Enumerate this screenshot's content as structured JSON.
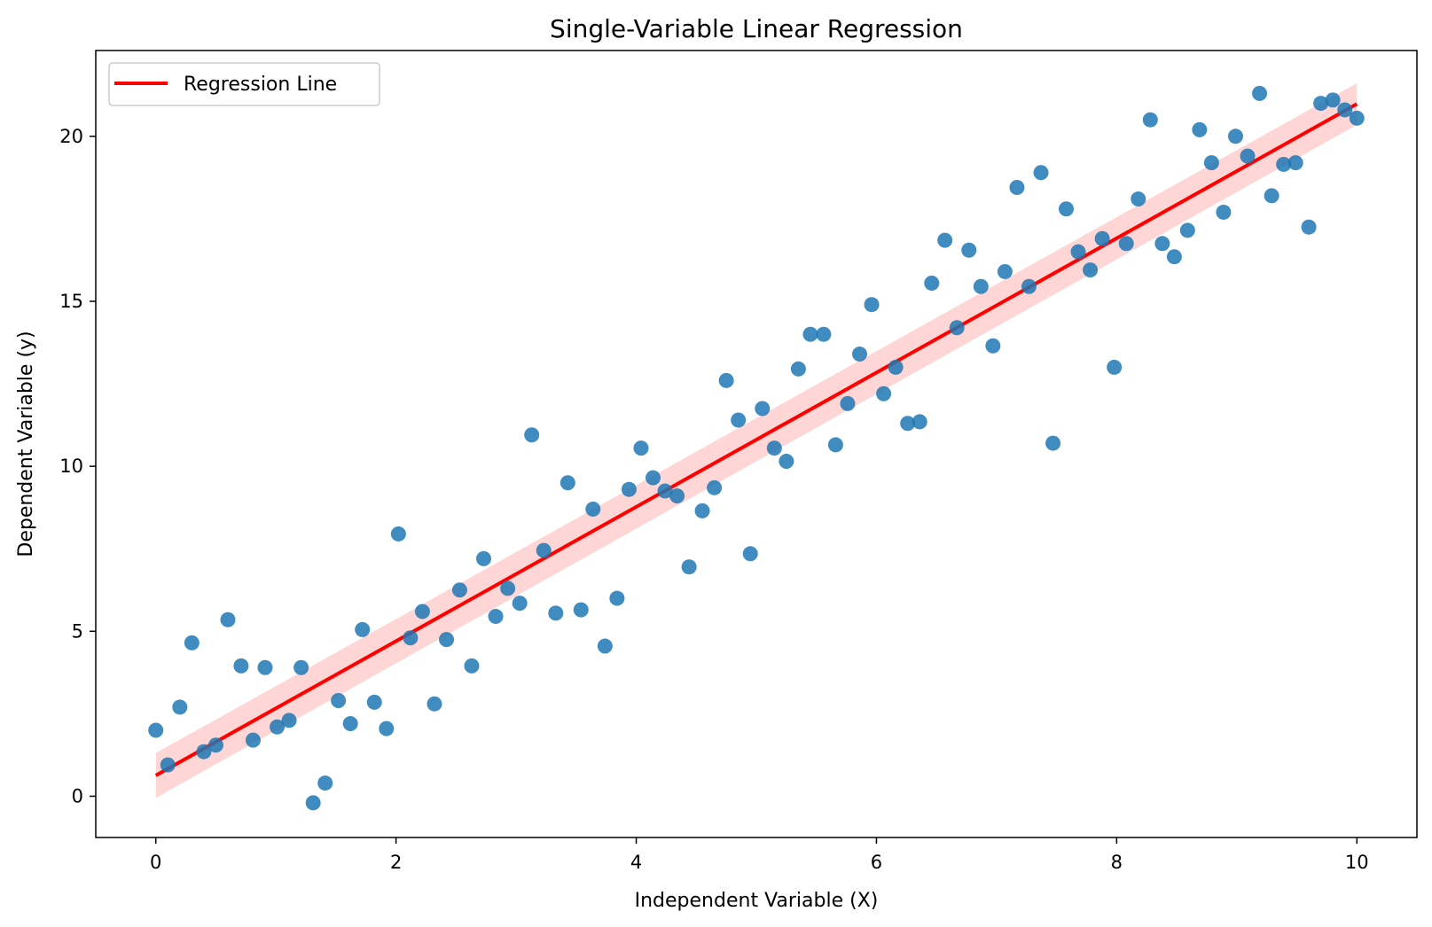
{
  "chart_data": {
    "type": "scatter",
    "title": "Single-Variable Linear Regression",
    "xlabel": "Independent Variable (X)",
    "ylabel": "Dependent Variable (y)",
    "xlim": [
      -0.5,
      10.5
    ],
    "ylim": [
      -1.25,
      22.6
    ],
    "xticks": [
      0,
      2,
      4,
      6,
      8,
      10
    ],
    "yticks": [
      0,
      5,
      10,
      15,
      20
    ],
    "grid": false,
    "legend_position": "top-left",
    "legend": [
      "Regression Line"
    ],
    "colors": {
      "points": "#1f77b4",
      "line": "#ff0000",
      "band": "#ff9999"
    },
    "regression_line": {
      "name": "Regression Line",
      "x": [
        0,
        10
      ],
      "y": [
        0.63,
        20.98
      ]
    },
    "confidence_band": {
      "x": [
        0,
        10
      ],
      "lower": [
        -0.05,
        20.35
      ],
      "upper": [
        1.31,
        21.61
      ]
    },
    "points": {
      "x": [
        0.0,
        0.1,
        0.2,
        0.3,
        0.4,
        0.5,
        0.6,
        0.71,
        0.81,
        0.91,
        1.01,
        1.11,
        1.21,
        1.31,
        1.41,
        1.52,
        1.62,
        1.72,
        1.82,
        1.92,
        2.02,
        2.12,
        2.22,
        2.32,
        2.42,
        2.53,
        2.63,
        2.73,
        2.83,
        2.93,
        3.03,
        3.13,
        3.23,
        3.33,
        3.43,
        3.54,
        3.64,
        3.74,
        3.84,
        3.94,
        4.04,
        4.14,
        4.24,
        4.34,
        4.44,
        4.55,
        4.65,
        4.75,
        4.85,
        4.95,
        5.05,
        5.15,
        5.25,
        5.35,
        5.45,
        5.56,
        5.66,
        5.76,
        5.86,
        5.96,
        6.06,
        6.16,
        6.26,
        6.36,
        6.46,
        6.57,
        6.67,
        6.77,
        6.87,
        6.97,
        7.07,
        7.17,
        7.27,
        7.37,
        7.47,
        7.58,
        7.68,
        7.78,
        7.88,
        7.98,
        8.08,
        8.18,
        8.28,
        8.38,
        8.48,
        8.59,
        8.69,
        8.79,
        8.89,
        8.99,
        9.09,
        9.19,
        9.29,
        9.39,
        9.49,
        9.6,
        9.7,
        9.8,
        9.9,
        10.0
      ],
      "y": [
        2.0,
        0.95,
        2.7,
        4.65,
        1.35,
        1.55,
        5.35,
        3.95,
        1.7,
        3.9,
        2.1,
        2.3,
        3.9,
        -0.2,
        0.4,
        2.9,
        2.2,
        5.05,
        2.85,
        2.05,
        7.95,
        4.8,
        5.6,
        2.8,
        4.75,
        6.25,
        3.95,
        7.2,
        5.45,
        6.3,
        5.85,
        10.95,
        7.45,
        5.55,
        9.5,
        5.65,
        8.7,
        4.55,
        6.0,
        9.3,
        10.55,
        9.65,
        9.25,
        9.1,
        6.95,
        8.65,
        9.35,
        12.6,
        11.4,
        7.35,
        11.75,
        10.55,
        10.15,
        12.95,
        14.0,
        14.0,
        10.65,
        11.9,
        13.4,
        14.9,
        12.2,
        13.0,
        11.3,
        11.35,
        15.55,
        16.85,
        14.2,
        16.55,
        15.45,
        13.65,
        15.9,
        18.45,
        15.45,
        18.9,
        10.7,
        17.8,
        16.5,
        15.95,
        16.9,
        13.0,
        16.75,
        18.1,
        20.5,
        16.75,
        16.35,
        17.15,
        20.2,
        19.2,
        17.7,
        20.0,
        19.4,
        21.3,
        18.2,
        19.15,
        19.2,
        17.25,
        21.0,
        21.1,
        20.8,
        20.55
      ]
    }
  }
}
